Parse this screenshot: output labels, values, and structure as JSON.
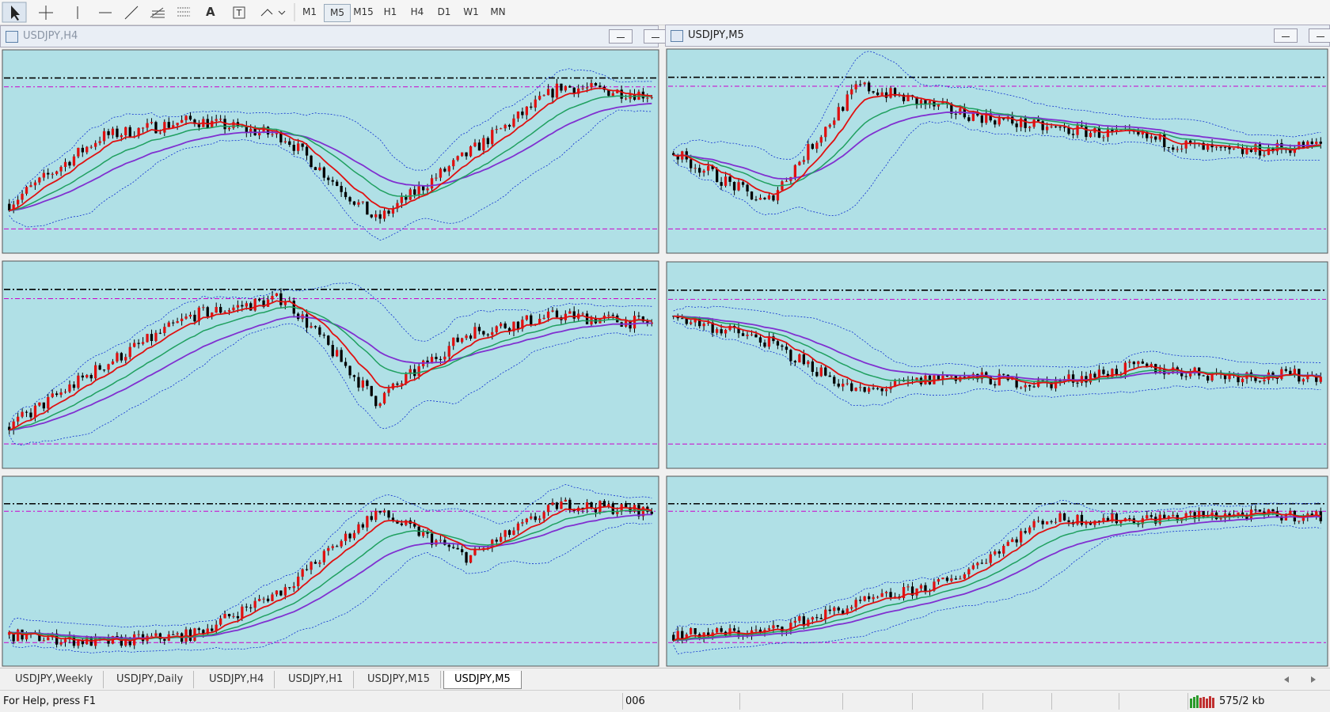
{
  "toolbar": {
    "text_icon": "A",
    "timeframes": [
      "M1",
      "M5",
      "M15",
      "H1",
      "H4",
      "D1",
      "W1",
      "MN"
    ]
  },
  "windows": [
    {
      "title": "USDJPY,H4"
    },
    {
      "title": "USDJPY,M5"
    }
  ],
  "tabs": [
    "USDJPY,Weekly",
    "USDJPY,Daily",
    "USDJPY,H4",
    "USDJPY,H1",
    "USDJPY,M15",
    "USDJPY,M5"
  ],
  "status": {
    "help": "For Help, press F1",
    "profile": "006",
    "traffic": "575/2 kb"
  }
}
